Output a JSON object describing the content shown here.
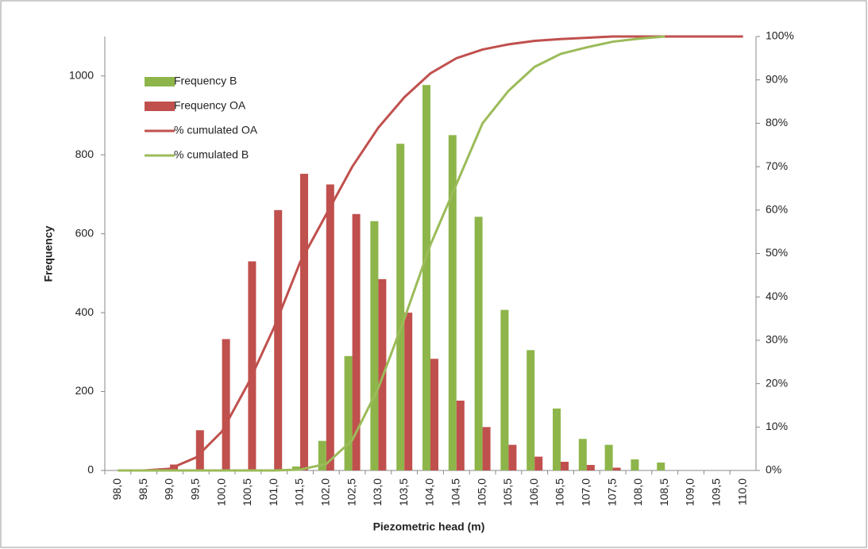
{
  "chart_data": {
    "type": "bar",
    "x_label": "Piezometric head (m)",
    "y_label": "Frequency",
    "categories": [
      "98,0",
      "98,5",
      "99,0",
      "99,5",
      "100,0",
      "100,5",
      "101,0",
      "101,5",
      "102,0",
      "102,5",
      "103,0",
      "103,5",
      "104,0",
      "104,5",
      "105,0",
      "105,5",
      "106,0",
      "106,5",
      "107,0",
      "107,5",
      "108,0",
      "108,5",
      "109,0",
      "109,5",
      "110,0"
    ],
    "series": [
      {
        "name": "Frequency B",
        "type": "bar",
        "color": "#8db54a",
        "values": [
          0,
          0,
          0,
          0,
          0,
          0,
          0,
          10,
          75,
          290,
          632,
          828,
          977,
          850,
          643,
          407,
          305,
          157,
          80,
          65,
          28,
          20,
          0,
          0,
          0
        ]
      },
      {
        "name": "Frequency OA",
        "type": "bar",
        "color": "#c0504d",
        "values": [
          0,
          0,
          15,
          102,
          333,
          530,
          660,
          752,
          725,
          650,
          485,
          400,
          283,
          177,
          110,
          65,
          35,
          22,
          14,
          7,
          0,
          0,
          0,
          0,
          0
        ]
      },
      {
        "name": "% cumulated OA",
        "type": "line",
        "axis": "y2",
        "color": "#c0504d",
        "values": [
          0,
          0,
          0.4,
          3,
          9,
          20,
          33,
          48,
          59,
          70,
          79,
          86,
          91.5,
          95,
          97,
          98.2,
          99,
          99.4,
          99.7,
          100,
          100,
          100,
          100,
          100,
          100
        ]
      },
      {
        "name": "% cumulated B",
        "type": "line",
        "axis": "y2",
        "color": "#9bbb59",
        "values": [
          0,
          0,
          0,
          0,
          0,
          0,
          0,
          0.2,
          1.5,
          7,
          19,
          35,
          52,
          66,
          80,
          87.5,
          93,
          96,
          97.5,
          98.8,
          99.5,
          100,
          null,
          null,
          null
        ]
      }
    ],
    "ylim": [
      0,
      1100
    ],
    "yticks": [
      0,
      200,
      400,
      600,
      800,
      1000
    ],
    "y2lim": [
      0,
      100
    ],
    "y2ticks": [
      {
        "value": 0,
        "label": "0%"
      },
      {
        "value": 10,
        "label": "10%"
      },
      {
        "value": 20,
        "label": "20%"
      },
      {
        "value": 30,
        "label": "30%"
      },
      {
        "value": 40,
        "label": "40%"
      },
      {
        "value": 50,
        "label": "50%"
      },
      {
        "value": 60,
        "label": "60%"
      },
      {
        "value": 70,
        "label": "70%"
      },
      {
        "value": 80,
        "label": "80%"
      },
      {
        "value": 90,
        "label": "90%"
      },
      {
        "value": 100,
        "label": "100%"
      }
    ],
    "grid": false,
    "legend": "top-left"
  }
}
